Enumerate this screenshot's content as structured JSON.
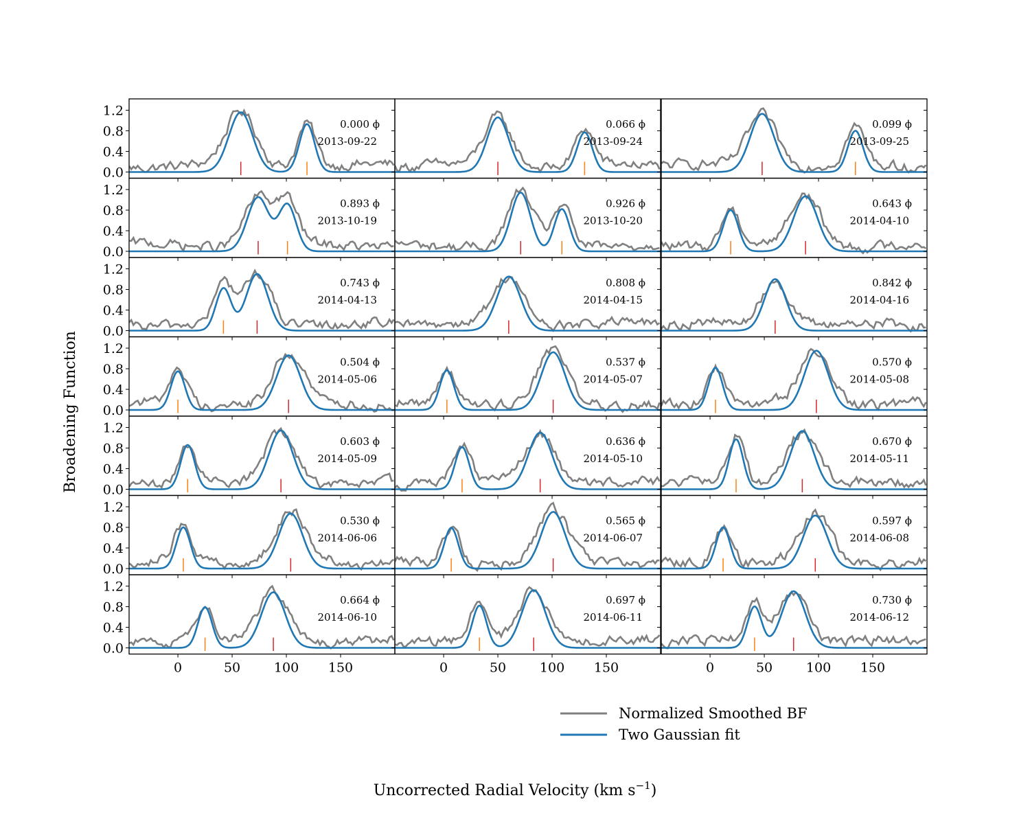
{
  "chart_data": {
    "type": "line",
    "layout": {
      "rows": 7,
      "cols": 3
    },
    "xlabel": "Uncorrected Radial Velocity (km s",
    "xlabel_sup": "−1",
    "xlabel_end": ")",
    "ylabel": "Broadening Function",
    "xlim": [
      -45,
      200
    ],
    "ylim": [
      -0.12,
      1.42
    ],
    "xticks": [
      0,
      50,
      100,
      150
    ],
    "xtick_labels": [
      "0",
      "50",
      "100",
      "150"
    ],
    "yticks": [
      0.0,
      0.4,
      0.8,
      1.2
    ],
    "ytick_labels": [
      "0.0",
      "0.4",
      "0.8",
      "1.2"
    ],
    "phase_unit": "ϕ",
    "legend": {
      "position": "bottom-right",
      "entries": [
        {
          "name": "Normalized Smoothed BF",
          "color": "#808080"
        },
        {
          "name": "Two Gaussian fit",
          "color": "#1f77b4"
        }
      ]
    },
    "colors": {
      "bf": "#808080",
      "fit": "#1f77b4",
      "primary_marker": "#d62728",
      "secondary_marker": "#ff7f0e"
    },
    "panels": [
      {
        "phase": "0.000",
        "date": "2013-09-22",
        "v1": 58,
        "a1": 1.16,
        "s1": 11,
        "v2": 119,
        "a2": 0.93,
        "s2": 7,
        "red": 58,
        "orange": 119
      },
      {
        "phase": "0.066",
        "date": "2013-09-24",
        "v1": 50,
        "a1": 1.06,
        "s1": 10,
        "v2": 130,
        "a2": 0.77,
        "s2": 7,
        "red": 50,
        "orange": 130
      },
      {
        "phase": "0.099",
        "date": "2013-09-25",
        "v1": 48,
        "a1": 1.13,
        "s1": 11,
        "v2": 134,
        "a2": 0.8,
        "s2": 7,
        "red": 48,
        "orange": 134
      },
      {
        "phase": "0.893",
        "date": "2013-10-19",
        "v1": 74,
        "a1": 1.05,
        "s1": 10,
        "v2": 101,
        "a2": 0.9,
        "s2": 8,
        "red": 74,
        "orange": 101
      },
      {
        "phase": "0.926",
        "date": "2013-10-20",
        "v1": 71,
        "a1": 1.14,
        "s1": 9,
        "v2": 109,
        "a2": 0.82,
        "s2": 7,
        "red": 71,
        "orange": 109
      },
      {
        "phase": "0.643",
        "date": "2014-04-10",
        "v1": 88,
        "a1": 1.07,
        "s1": 11,
        "v2": 19,
        "a2": 0.8,
        "s2": 7,
        "red": 88,
        "orange": 19
      },
      {
        "phase": "0.743",
        "date": "2014-04-13",
        "v1": 73,
        "a1": 1.1,
        "s1": 10,
        "v2": 42,
        "a2": 0.82,
        "s2": 7,
        "red": 73,
        "orange": 42
      },
      {
        "phase": "0.808",
        "date": "2014-04-15",
        "v1": 60,
        "a1": 1.05,
        "s1": 11,
        "v2": 60,
        "a2": 0.0,
        "s2": 7,
        "red": 60,
        "orange": null
      },
      {
        "phase": "0.842",
        "date": "2014-04-16",
        "v1": 60,
        "a1": 1.0,
        "s1": 10,
        "v2": 60,
        "a2": 0.0,
        "s2": 7,
        "red": 60,
        "orange": null
      },
      {
        "phase": "0.504",
        "date": "2014-05-06",
        "v1": 102,
        "a1": 1.06,
        "s1": 11,
        "v2": 0,
        "a2": 0.75,
        "s2": 6.5,
        "red": 102,
        "orange": 0
      },
      {
        "phase": "0.537",
        "date": "2014-05-07",
        "v1": 101,
        "a1": 1.12,
        "s1": 11,
        "v2": 3,
        "a2": 0.77,
        "s2": 6.5,
        "red": 101,
        "orange": 3
      },
      {
        "phase": "0.570",
        "date": "2014-05-08",
        "v1": 98,
        "a1": 1.15,
        "s1": 11,
        "v2": 5,
        "a2": 0.82,
        "s2": 6.5,
        "red": 98,
        "orange": 5
      },
      {
        "phase": "0.603",
        "date": "2014-05-09",
        "v1": 95,
        "a1": 1.14,
        "s1": 11,
        "v2": 9,
        "a2": 0.86,
        "s2": 6.5,
        "red": 95,
        "orange": 9
      },
      {
        "phase": "0.636",
        "date": "2014-05-10",
        "v1": 89,
        "a1": 1.1,
        "s1": 11,
        "v2": 17,
        "a2": 0.82,
        "s2": 6.5,
        "red": 89,
        "orange": 17
      },
      {
        "phase": "0.670",
        "date": "2014-05-11",
        "v1": 85,
        "a1": 1.13,
        "s1": 11,
        "v2": 24,
        "a2": 0.97,
        "s2": 6.5,
        "red": 85,
        "orange": 24
      },
      {
        "phase": "0.530",
        "date": "2014-06-06",
        "v1": 104,
        "a1": 1.07,
        "s1": 11,
        "v2": 5,
        "a2": 0.8,
        "s2": 6.5,
        "red": 104,
        "orange": 5
      },
      {
        "phase": "0.565",
        "date": "2014-06-07",
        "v1": 101,
        "a1": 1.1,
        "s1": 11,
        "v2": 7,
        "a2": 0.79,
        "s2": 6.5,
        "red": 101,
        "orange": 7
      },
      {
        "phase": "0.597",
        "date": "2014-06-08",
        "v1": 97,
        "a1": 1.03,
        "s1": 11,
        "v2": 12,
        "a2": 0.8,
        "s2": 6.5,
        "red": 97,
        "orange": 12
      },
      {
        "phase": "0.664",
        "date": "2014-06-10",
        "v1": 88,
        "a1": 1.08,
        "s1": 11,
        "v2": 25,
        "a2": 0.79,
        "s2": 6.5,
        "red": 88,
        "orange": 25
      },
      {
        "phase": "0.697",
        "date": "2014-06-11",
        "v1": 83,
        "a1": 1.12,
        "s1": 11,
        "v2": 33,
        "a2": 0.82,
        "s2": 6.5,
        "red": 83,
        "orange": 33
      },
      {
        "phase": "0.730",
        "date": "2014-06-12",
        "v1": 77,
        "a1": 1.1,
        "s1": 11,
        "v2": 41,
        "a2": 0.8,
        "s2": 6.5,
        "red": 77,
        "orange": 41
      }
    ]
  }
}
